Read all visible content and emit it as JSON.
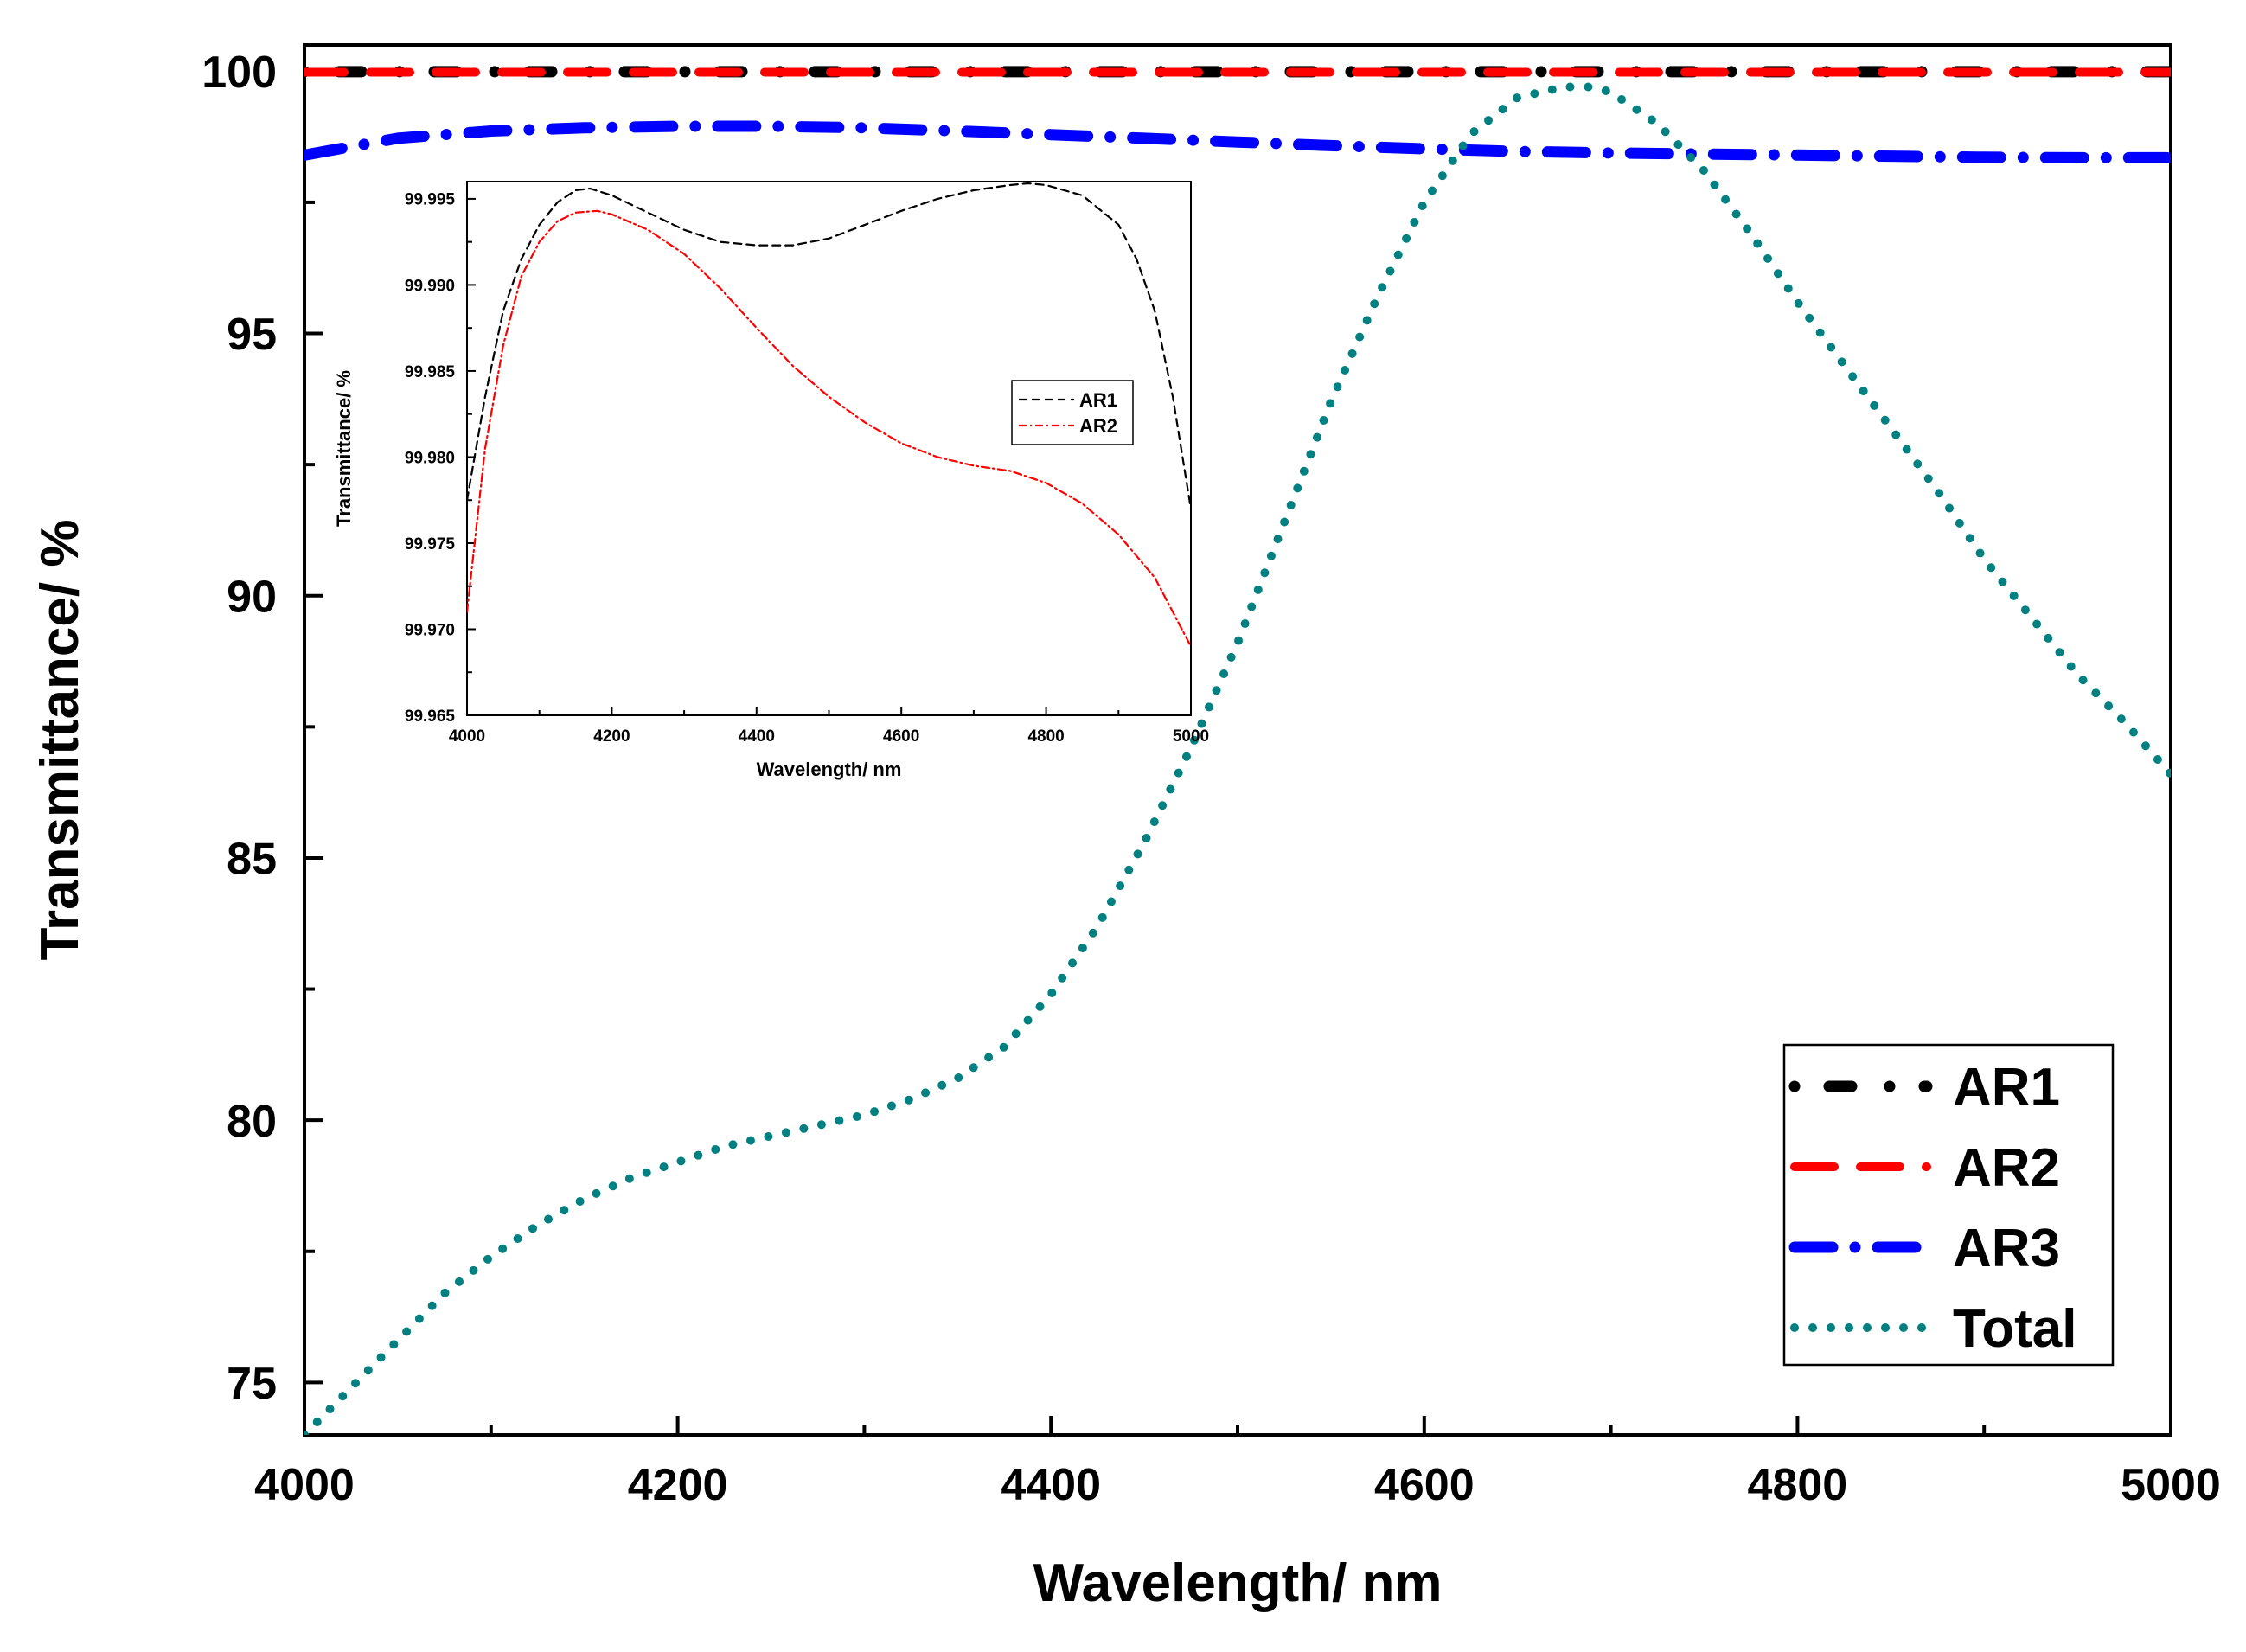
{
  "chart_data": [
    {
      "type": "line",
      "role": "main",
      "title": "",
      "xlabel": "Wavelength/ nm",
      "ylabel": "Transmittance/ %",
      "xlim": [
        4000,
        5000
      ],
      "ylim": [
        74,
        100.5
      ],
      "x_ticks": [
        4000,
        4200,
        4400,
        4600,
        4800,
        5000
      ],
      "y_ticks": [
        75,
        80,
        85,
        90,
        95,
        100
      ],
      "grid": false,
      "legend_position": "bottom-right",
      "series": [
        {
          "name": "AR1",
          "color": "#000000",
          "style": "dotted-dash",
          "x": [
            4000,
            5000
          ],
          "y": [
            99.99,
            99.99
          ]
        },
        {
          "name": "AR2",
          "color": "#ff0000",
          "style": "dashed",
          "x": [
            4000,
            5000
          ],
          "y": [
            99.98,
            99.98
          ]
        },
        {
          "name": "AR3",
          "color": "#0000ff",
          "style": "dash-dot",
          "x": [
            4000,
            4050,
            4100,
            4150,
            4200,
            4250,
            4300,
            4350,
            4400,
            4450,
            4500,
            4550,
            4600,
            4650,
            4700,
            4750,
            4800,
            4850,
            4900,
            4950,
            5000
          ],
          "y": [
            98.4,
            98.72,
            98.86,
            98.92,
            98.95,
            98.95,
            98.92,
            98.86,
            98.79,
            98.72,
            98.65,
            98.58,
            98.52,
            98.47,
            98.44,
            98.42,
            98.4,
            98.38,
            98.36,
            98.35,
            98.35
          ]
        },
        {
          "name": "Total",
          "color": "#008080",
          "style": "dotted",
          "x": [
            4000,
            4025,
            4050,
            4075,
            4100,
            4125,
            4150,
            4175,
            4200,
            4225,
            4250,
            4275,
            4300,
            4325,
            4350,
            4375,
            4400,
            4425,
            4450,
            4475,
            4500,
            4525,
            4550,
            4575,
            4600,
            4625,
            4650,
            4675,
            4690,
            4700,
            4725,
            4750,
            4775,
            4800,
            4825,
            4850,
            4875,
            4900,
            4925,
            4950,
            4975,
            5000
          ],
          "y": [
            74.0,
            74.9,
            75.8,
            76.7,
            77.4,
            78.0,
            78.5,
            78.9,
            79.2,
            79.5,
            79.7,
            79.9,
            80.1,
            80.4,
            80.8,
            81.4,
            82.4,
            83.7,
            85.3,
            87.1,
            89.1,
            91.4,
            93.7,
            95.7,
            97.5,
            98.8,
            99.5,
            99.7,
            99.7,
            99.6,
            99.0,
            98.1,
            96.9,
            95.6,
            94.4,
            93.2,
            92.0,
            90.7,
            89.6,
            88.5,
            87.6,
            86.6
          ]
        }
      ]
    },
    {
      "type": "line",
      "role": "inset",
      "title": "",
      "xlabel": "Wavelength/ nm",
      "ylabel": "Transmittance/ %",
      "xlim": [
        4000,
        5000
      ],
      "ylim": [
        99.965,
        99.996
      ],
      "x_ticks": [
        4000,
        4200,
        4400,
        4600,
        4800,
        5000
      ],
      "y_ticks": [
        99.965,
        99.97,
        99.975,
        99.98,
        99.985,
        99.99,
        99.995
      ],
      "x_tick_labels": [
        "4000",
        "4200",
        "4400",
        "4600",
        "4800",
        "5000"
      ],
      "y_tick_labels": [
        "99.965",
        "99.970",
        "99.975",
        "99.980",
        "99.985",
        "99.990",
        "99.995"
      ],
      "grid": false,
      "legend_position": "right",
      "series": [
        {
          "name": "AR1",
          "color": "#000000",
          "style": "dashed",
          "x": [
            4000,
            4025,
            4050,
            4075,
            4100,
            4125,
            4150,
            4170,
            4200,
            4250,
            4300,
            4350,
            4400,
            4450,
            4500,
            4550,
            4600,
            4650,
            4700,
            4750,
            4775,
            4800,
            4850,
            4900,
            4925,
            4950,
            4975,
            5000
          ],
          "y": [
            99.9775,
            99.9835,
            99.9885,
            99.9915,
            99.9935,
            99.9948,
            99.9955,
            99.9956,
            99.9952,
            99.9942,
            99.9932,
            99.9925,
            99.9923,
            99.9923,
            99.9927,
            99.9935,
            99.9943,
            99.995,
            99.9955,
            99.9958,
            99.9959,
            99.9958,
            99.9952,
            99.9935,
            99.9915,
            99.9885,
            99.9835,
            99.977
          ]
        },
        {
          "name": "AR2",
          "color": "#ff0000",
          "style": "dash-dot",
          "x": [
            4000,
            4025,
            4050,
            4075,
            4100,
            4125,
            4150,
            4180,
            4200,
            4250,
            4300,
            4350,
            4400,
            4450,
            4500,
            4550,
            4600,
            4650,
            4700,
            4750,
            4800,
            4850,
            4900,
            4950,
            5000
          ],
          "y": [
            99.971,
            99.9805,
            99.9865,
            99.9905,
            99.9925,
            99.9937,
            99.9942,
            99.9943,
            99.9941,
            99.9932,
            99.9918,
            99.9898,
            99.9875,
            99.9853,
            99.9835,
            99.982,
            99.9808,
            99.98,
            99.9795,
            99.9792,
            99.9785,
            99.9773,
            99.9755,
            99.973,
            99.969
          ]
        }
      ]
    }
  ]
}
